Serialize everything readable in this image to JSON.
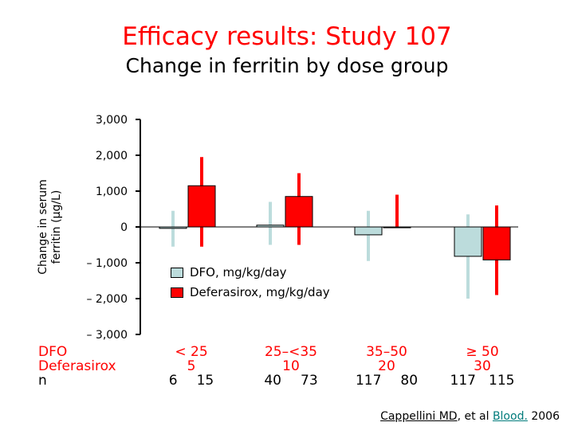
{
  "header": {
    "title": "Efficacy results: Study 107",
    "subtitle": "Change in ferritin by dose group"
  },
  "chart_data": {
    "type": "bar",
    "title": "Efficacy results: Study 107",
    "subtitle": "Change in ferritin by dose group",
    "ylabel": "Change in serum ferritin (µg/L)",
    "ylim": [
      -3000,
      3000
    ],
    "yticks": [
      3000,
      2000,
      1000,
      0,
      -1000,
      -2000,
      -3000
    ],
    "ytick_labels": [
      "3,000",
      "2,000",
      "1,000",
      "0",
      "– 1,000",
      "– 2,000",
      "– 3,000"
    ],
    "categories": [
      "< 25",
      "25–<35",
      "35–50",
      "≥ 50"
    ],
    "series": [
      {
        "name": "DFO, mg/kg/day",
        "color": "#bcdcdc",
        "values": [
          -40,
          50,
          -220,
          -820
        ],
        "error_low": [
          -550,
          -500,
          -950,
          -2000
        ],
        "error_high": [
          450,
          700,
          450,
          350
        ]
      },
      {
        "name": "Deferasirox, mg/kg/day",
        "color": "#ff0000",
        "values": [
          1150,
          850,
          -20,
          -920
        ],
        "error_low": [
          -550,
          -500,
          -20,
          -1900
        ],
        "error_high": [
          1950,
          1500,
          900,
          600
        ]
      }
    ],
    "dose_rows": {
      "labels": [
        "DFO",
        "Deferasirox",
        "n"
      ],
      "dfo": [
        "< 25",
        "25–<35",
        "35–50",
        "≥ 50"
      ],
      "deferasirox": [
        "5",
        "10",
        "20",
        "30"
      ],
      "n_dfo": [
        "6",
        "40",
        "117",
        "117"
      ],
      "n_deferasirox": [
        "15",
        "73",
        "80",
        "115"
      ]
    },
    "legend": "middle-left",
    "grid": false
  },
  "citation": {
    "author": "Cappellini MD",
    "middle": ", et al ",
    "journal": "Blood.",
    "year": " 2006"
  }
}
